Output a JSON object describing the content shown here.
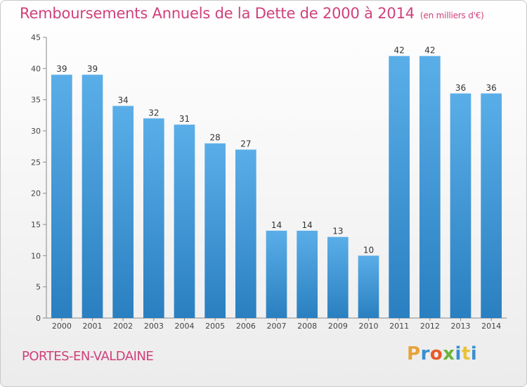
{
  "header": {
    "title": "Remboursements Annuels de la Dette de 2000 à 2014",
    "unit": "(en milliers d'€)"
  },
  "footer": {
    "city": "PORTES-EN-VALDAINE",
    "logo": "Proxiti"
  },
  "colors": {
    "accent": "#d0407a",
    "bar_light": "#5aaee8",
    "bar_dark": "#2a7fc0",
    "logo_letters": [
      "#e8a33a",
      "#3a8fd0",
      "#e85a2a",
      "#6ab43a",
      "#3a8fd0",
      "#e8c23a",
      "#3a8fd0"
    ]
  },
  "chart_data": {
    "type": "bar",
    "title": "Remboursements Annuels de la Dette de 2000 à 2014",
    "subtitle": "(en milliers d'€)",
    "categories": [
      "2000",
      "2001",
      "2002",
      "2003",
      "2004",
      "2005",
      "2006",
      "2007",
      "2008",
      "2009",
      "2010",
      "2011",
      "2012",
      "2013",
      "2014"
    ],
    "values": [
      39,
      39,
      34,
      32,
      31,
      28,
      27,
      14,
      14,
      13,
      10,
      42,
      42,
      36,
      36
    ],
    "xlabel": "",
    "ylabel": "",
    "ylim": [
      0,
      45
    ],
    "yticks": [
      0,
      5,
      10,
      15,
      20,
      25,
      30,
      35,
      40,
      45
    ],
    "grid": false,
    "legend": "none"
  }
}
